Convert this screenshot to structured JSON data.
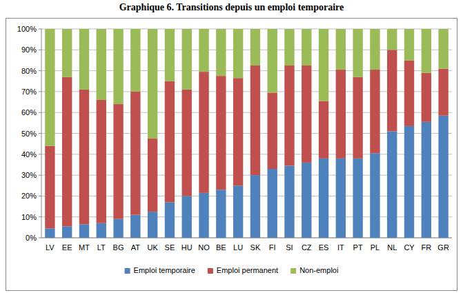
{
  "chart_data": {
    "type": "bar",
    "stacked": true,
    "grid": true,
    "legend": "bottom",
    "title": "Graphique 6. Transitions depuis un emploi temporaire",
    "categories": [
      "LV",
      "EE",
      "MT",
      "LT",
      "BG",
      "AT",
      "UK",
      "SE",
      "HU",
      "NO",
      "BE",
      "LU",
      "SK",
      "FI",
      "SI",
      "CZ",
      "ES",
      "IT",
      "PT",
      "PL",
      "NL",
      "CY",
      "FR",
      "GR"
    ],
    "series": [
      {
        "name": "Emploi temporaire",
        "color": "#4f81bd",
        "values": [
          4.5,
          5.5,
          6.5,
          7,
          9,
          11,
          12.5,
          17,
          20,
          21.5,
          23,
          25,
          30,
          33,
          34.5,
          36,
          38,
          38,
          38,
          40.5,
          51,
          53.5,
          55.5,
          58.5
        ]
      },
      {
        "name": "Emploi permanent",
        "color": "#c0504d",
        "values": [
          39.5,
          71.5,
          64.5,
          59,
          55,
          59,
          35,
          58,
          51,
          58,
          54.5,
          51.5,
          52.5,
          36.5,
          48,
          46.5,
          27.5,
          42.5,
          39,
          40,
          39,
          31.5,
          23.5,
          22.5
        ]
      },
      {
        "name": "Non-emploi",
        "color": "#9bbb59",
        "values": [
          56,
          23,
          29,
          34,
          36,
          30,
          52.5,
          25,
          29,
          20.5,
          22.5,
          23.5,
          17.5,
          30.5,
          17.5,
          17.5,
          34.5,
          19.5,
          23,
          19.5,
          10,
          15,
          21,
          19
        ]
      }
    ],
    "ylim": [
      0,
      100
    ],
    "yticks": [
      {
        "value": 0,
        "label": "0%"
      },
      {
        "value": 10,
        "label": "10%"
      },
      {
        "value": 20,
        "label": "20%"
      },
      {
        "value": 30,
        "label": "30%"
      },
      {
        "value": 40,
        "label": "40%"
      },
      {
        "value": 50,
        "label": "50%"
      },
      {
        "value": 60,
        "label": "60%"
      },
      {
        "value": 70,
        "label": "70%"
      },
      {
        "value": 80,
        "label": "80%"
      },
      {
        "value": 90,
        "label": "90%"
      },
      {
        "value": 100,
        "label": "100%"
      }
    ]
  }
}
